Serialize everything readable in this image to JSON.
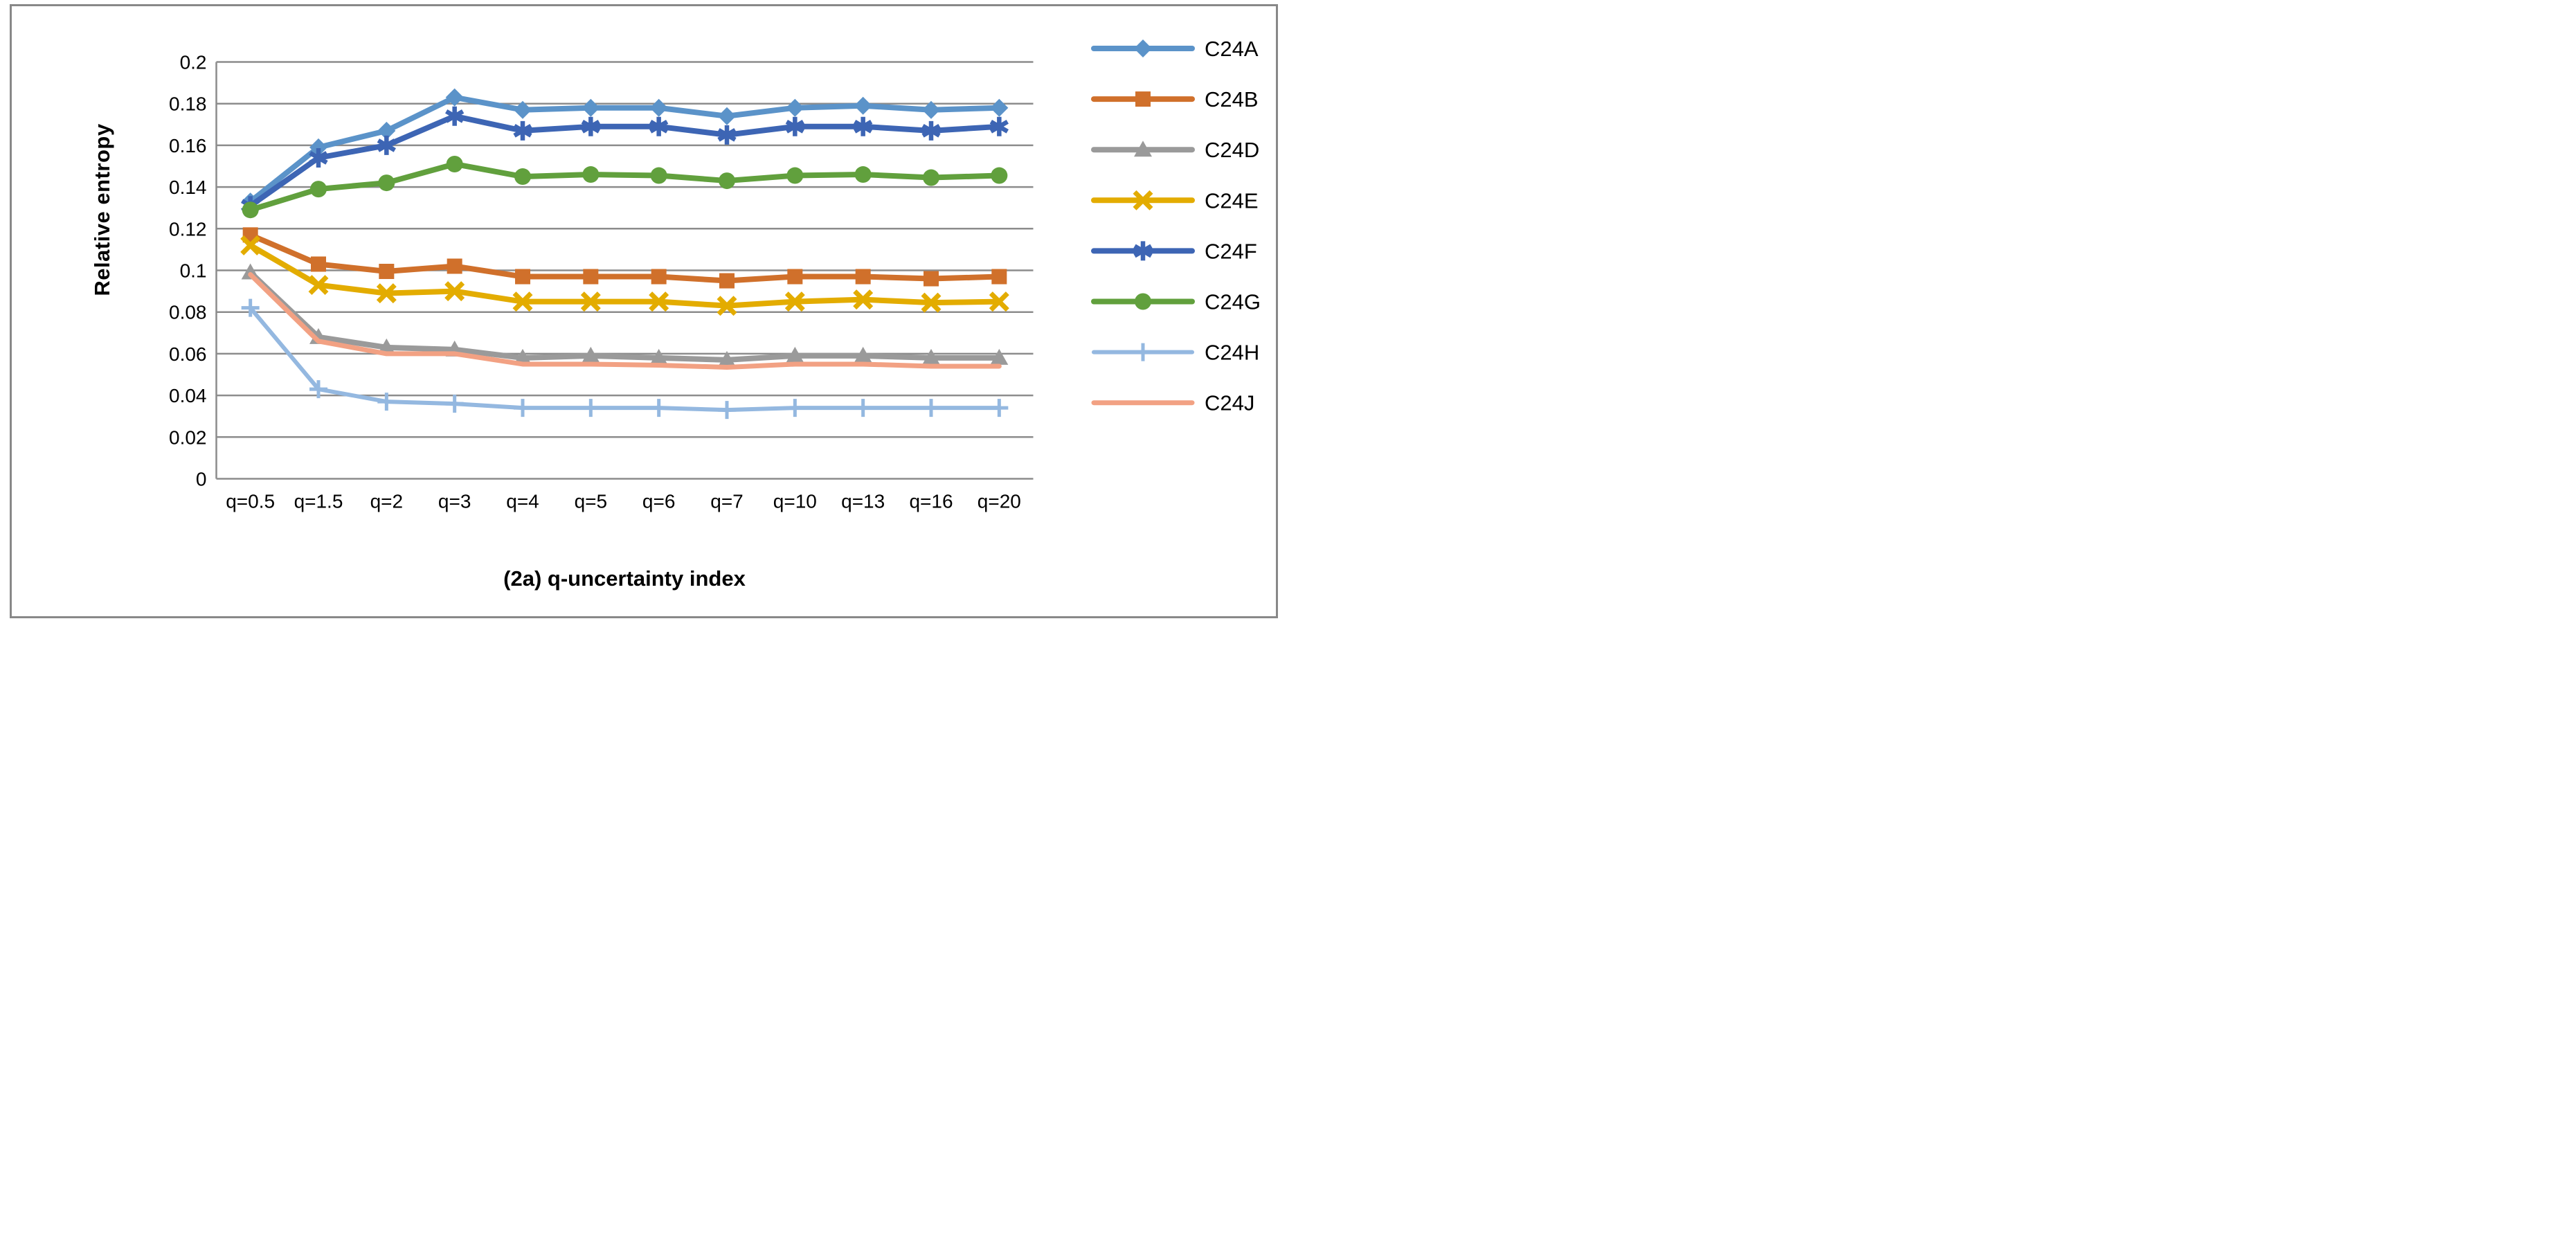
{
  "figure": {
    "background": "#ffffff",
    "frame_border_color": "#888888"
  },
  "chart_data": {
    "type": "line",
    "title": "(2a) q-uncertainty index",
    "xlabel": "(2a) q-uncertainty index",
    "ylabel": "Relative entropy",
    "grid": true,
    "legend_position": "right",
    "gridline_color": "#8C8C8C",
    "axis_line_color": "#8C8C8C",
    "text_color": "#000000",
    "ylim": [
      0,
      0.2
    ],
    "ytick_step": 0.02,
    "ytick_labels": [
      "0",
      "0.02",
      "0.04",
      "0.06",
      "0.08",
      "0.1",
      "0.12",
      "0.14",
      "0.16",
      "0.18",
      "0.2"
    ],
    "categories": [
      "q=0.5",
      "q=1.5",
      "q=2",
      "q=3",
      "q=4",
      "q=5",
      "q=6",
      "q=7",
      "q=10",
      "q=13",
      "q=16",
      "q=20"
    ],
    "series": [
      {
        "name": "C24A",
        "color": "#5B93C9",
        "marker": "diamond",
        "line_width": 8,
        "values": [
          0.133,
          0.159,
          0.167,
          0.183,
          0.177,
          0.178,
          0.178,
          0.174,
          0.178,
          0.179,
          0.177,
          0.178
        ]
      },
      {
        "name": "C24B",
        "color": "#D0702B",
        "marker": "square",
        "line_width": 8,
        "values": [
          0.117,
          0.103,
          0.0995,
          0.102,
          0.097,
          0.097,
          0.097,
          0.095,
          0.097,
          0.097,
          0.096,
          0.097
        ]
      },
      {
        "name": "C24D",
        "color": "#9A9A9A",
        "marker": "triangle",
        "line_width": 8,
        "values": [
          0.099,
          0.068,
          0.063,
          0.062,
          0.058,
          0.059,
          0.058,
          0.057,
          0.059,
          0.059,
          0.058,
          0.058
        ]
      },
      {
        "name": "C24E",
        "color": "#E3AC00",
        "marker": "x",
        "line_width": 8,
        "values": [
          0.112,
          0.093,
          0.089,
          0.09,
          0.085,
          0.085,
          0.085,
          0.083,
          0.085,
          0.086,
          0.0845,
          0.085
        ]
      },
      {
        "name": "C24F",
        "color": "#3D65B4",
        "marker": "asterisk",
        "line_width": 8,
        "values": [
          0.131,
          0.154,
          0.16,
          0.174,
          0.167,
          0.169,
          0.169,
          0.165,
          0.169,
          0.169,
          0.167,
          0.169
        ]
      },
      {
        "name": "C24G",
        "color": "#61A03D",
        "marker": "circle",
        "line_width": 8,
        "values": [
          0.129,
          0.139,
          0.142,
          0.151,
          0.145,
          0.146,
          0.1455,
          0.143,
          0.1455,
          0.146,
          0.1445,
          0.1455
        ]
      },
      {
        "name": "C24H",
        "color": "#94B8E0",
        "marker": "plus",
        "line_width": 6,
        "values": [
          0.082,
          0.043,
          0.037,
          0.036,
          0.034,
          0.034,
          0.034,
          0.033,
          0.034,
          0.034,
          0.034,
          0.034
        ]
      },
      {
        "name": "C24J",
        "color": "#F2A183",
        "marker": "none",
        "line_width": 7,
        "values": [
          0.098,
          0.066,
          0.06,
          0.06,
          0.055,
          0.055,
          0.0545,
          0.0535,
          0.055,
          0.055,
          0.054,
          0.054
        ]
      }
    ]
  }
}
